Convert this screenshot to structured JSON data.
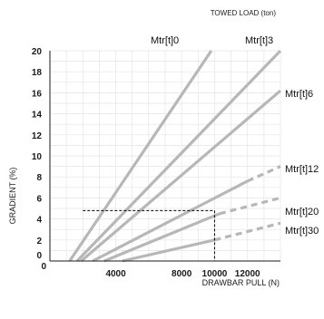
{
  "chart_data": {
    "type": "line",
    "title": "",
    "legend_title": "TOWED LOAD  (ton)",
    "xlabel": "DRAWBAR PULL (N)",
    "ylabel": "GRADIENT  (%)",
    "xlim": [
      0,
      14000
    ],
    "ylim": [
      0,
      20
    ],
    "x_ticks": [
      0,
      4000,
      8000,
      10000,
      12000
    ],
    "x_tick_labels": [
      "0",
      "4000",
      "8000",
      "10000",
      "12000"
    ],
    "y_ticks": [
      0,
      2,
      4,
      6,
      8,
      10,
      12,
      14,
      16,
      18,
      20
    ],
    "y_tick_labels": [
      "0",
      "2",
      "4",
      "6",
      "8",
      "10",
      "12",
      "14",
      "16",
      "18",
      "20"
    ],
    "grid": true,
    "series": [
      {
        "name": "Mtr[t]0",
        "solid": [
          [
            1200,
            0
          ],
          [
            9800,
            20
          ]
        ],
        "dashed": []
      },
      {
        "name": "Mtr[t]3",
        "solid": [
          [
            1650,
            0
          ],
          [
            14000,
            20
          ]
        ],
        "dashed": []
      },
      {
        "name": "Mtr[t]6",
        "solid": [
          [
            1900,
            0
          ],
          [
            14000,
            16.2
          ]
        ],
        "dashed": []
      },
      {
        "name": "Mtr[t]12",
        "solid": [
          [
            2600,
            0
          ],
          [
            12000,
            7.6
          ]
        ],
        "dashed": [
          [
            12000,
            7.6
          ],
          [
            14000,
            9.0
          ]
        ]
      },
      {
        "name": "Mtr[t]20",
        "solid": [
          [
            3300,
            0
          ],
          [
            10300,
            4.5
          ]
        ],
        "dashed": [
          [
            10300,
            4.5
          ],
          [
            14000,
            6.0
          ]
        ]
      },
      {
        "name": "Mtr[t]30",
        "solid": [
          [
            4400,
            0
          ],
          [
            10000,
            2.0
          ]
        ],
        "dashed": [
          [
            10000,
            2.0
          ],
          [
            14000,
            3.6
          ]
        ]
      }
    ],
    "reference": {
      "x": 10000,
      "y": 4.8,
      "x_start": 2000
    }
  },
  "colors": {
    "series_line": "#b7b7b7",
    "grid": "#e4e4e4",
    "axis": "#1a1a1a",
    "reference": "#000000"
  }
}
